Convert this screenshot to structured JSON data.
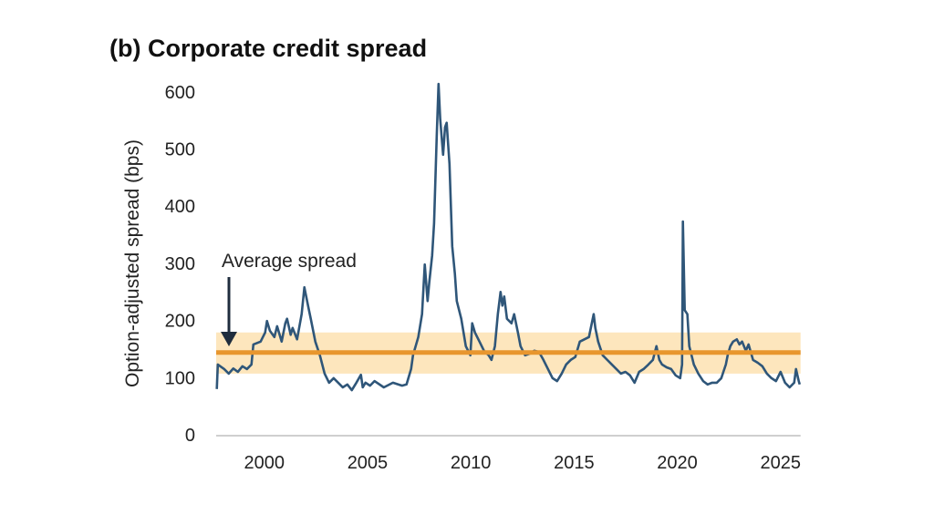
{
  "chart_data": {
    "type": "line",
    "title": "(b) Corporate credit spread",
    "xlabel": "",
    "ylabel": "Option-adjusted spread (bps)",
    "xlim": [
      1998.2,
      2026.5
    ],
    "ylim": [
      0,
      620
    ],
    "x_ticks": [
      2000,
      2005,
      2010,
      2015,
      2020,
      2025
    ],
    "y_ticks": [
      0,
      100,
      200,
      300,
      400,
      500,
      600
    ],
    "grid": false,
    "colors": {
      "series": "#2f5679",
      "average": "#e8962e",
      "band": "#fde6bd",
      "arrow": "#1f2d3d"
    },
    "average": {
      "label": "Average spread",
      "value": 144,
      "band": [
        107,
        179
      ]
    },
    "series": [
      {
        "x": [
          1998.23,
          1998.28,
          1998.59,
          1998.81,
          1999.03,
          1999.25,
          1999.47,
          1999.69,
          1999.91,
          2000.0,
          2000.35,
          2000.57,
          2000.66,
          2000.8,
          2001.02,
          2001.15,
          2001.37,
          2001.55,
          2001.63,
          2001.81,
          2001.9,
          2002.12,
          2002.34,
          2002.47,
          2002.56,
          2002.65,
          2002.78,
          2003.0,
          2003.22,
          2003.45,
          2003.67,
          2003.89,
          2004.11,
          2004.33,
          2004.55,
          2004.77,
          2004.99,
          2005.21,
          2005.3,
          2005.43,
          2005.65,
          2005.87,
          2006.32,
          2006.76,
          2007.2,
          2007.42,
          2007.64,
          2007.73,
          2007.86,
          2007.99,
          2008.17,
          2008.3,
          2008.44,
          2008.52,
          2008.66,
          2008.75,
          2008.88,
          2008.97,
          2009.05,
          2009.19,
          2009.28,
          2009.36,
          2009.5,
          2009.63,
          2009.76,
          2009.85,
          2010.07,
          2010.29,
          2010.51,
          2010.6,
          2010.73,
          2010.95,
          2011.17,
          2011.4,
          2011.53,
          2011.7,
          2011.84,
          2011.97,
          2012.06,
          2012.15,
          2012.28,
          2012.5,
          2012.63,
          2012.81,
          2012.94,
          2013.16,
          2013.38,
          2013.6,
          2013.83,
          2014.05,
          2014.27,
          2014.49,
          2014.71,
          2014.93,
          2015.15,
          2015.37,
          2015.59,
          2015.81,
          2016.03,
          2016.25,
          2016.48,
          2016.56,
          2016.7,
          2016.92,
          2017.14,
          2017.36,
          2017.58,
          2017.8,
          2018.02,
          2018.24,
          2018.46,
          2018.68,
          2018.9,
          2019.13,
          2019.35,
          2019.52,
          2019.66,
          2019.79,
          2020.01,
          2020.23,
          2020.45,
          2020.67,
          2020.76,
          2020.8,
          2020.89,
          2021.02,
          2021.11,
          2021.33,
          2021.55,
          2021.78,
          2022.0,
          2022.22,
          2022.44,
          2022.66,
          2022.88,
          2022.97,
          2023.1,
          2023.23,
          2023.41,
          2023.54,
          2023.67,
          2023.85,
          2023.98,
          2024.2,
          2024.43,
          2024.65,
          2024.87,
          2025.09,
          2025.31,
          2025.53,
          2025.75,
          2025.97,
          2026.19,
          2026.28,
          2026.41,
          2026.46
        ],
        "y": [
          80,
          123,
          115,
          107,
          116,
          110,
          120,
          115,
          123,
          158,
          163,
          179,
          199,
          182,
          171,
          190,
          163,
          195,
          203,
          175,
          187,
          167,
          211,
          258,
          242,
          226,
          203,
          163,
          139,
          107,
          91,
          99,
          91,
          83,
          88,
          78,
          91,
          105,
          83,
          91,
          86,
          94,
          83,
          91,
          86,
          88,
          115,
          139,
          155,
          171,
          211,
          298,
          234,
          266,
          314,
          370,
          522,
          614,
          553,
          490,
          538,
          546,
          474,
          330,
          282,
          234,
          203,
          155,
          139,
          195,
          179,
          163,
          147,
          139,
          131,
          155,
          211,
          250,
          226,
          242,
          203,
          195,
          211,
          179,
          155,
          139,
          142,
          147,
          145,
          131,
          115,
          99,
          94,
          107,
          123,
          131,
          136,
          163,
          167,
          171,
          211,
          187,
          163,
          139,
          131,
          123,
          115,
          107,
          110,
          104,
          91,
          110,
          115,
          123,
          131,
          155,
          131,
          123,
          118,
          115,
          104,
          99,
          123,
          373,
          218,
          211,
          155,
          123,
          107,
          94,
          88,
          91,
          91,
          99,
          123,
          139,
          155,
          163,
          167,
          158,
          163,
          147,
          158,
          131,
          126,
          120,
          107,
          99,
          94,
          110,
          91,
          83,
          91,
          115,
          94,
          88
        ]
      }
    ]
  }
}
